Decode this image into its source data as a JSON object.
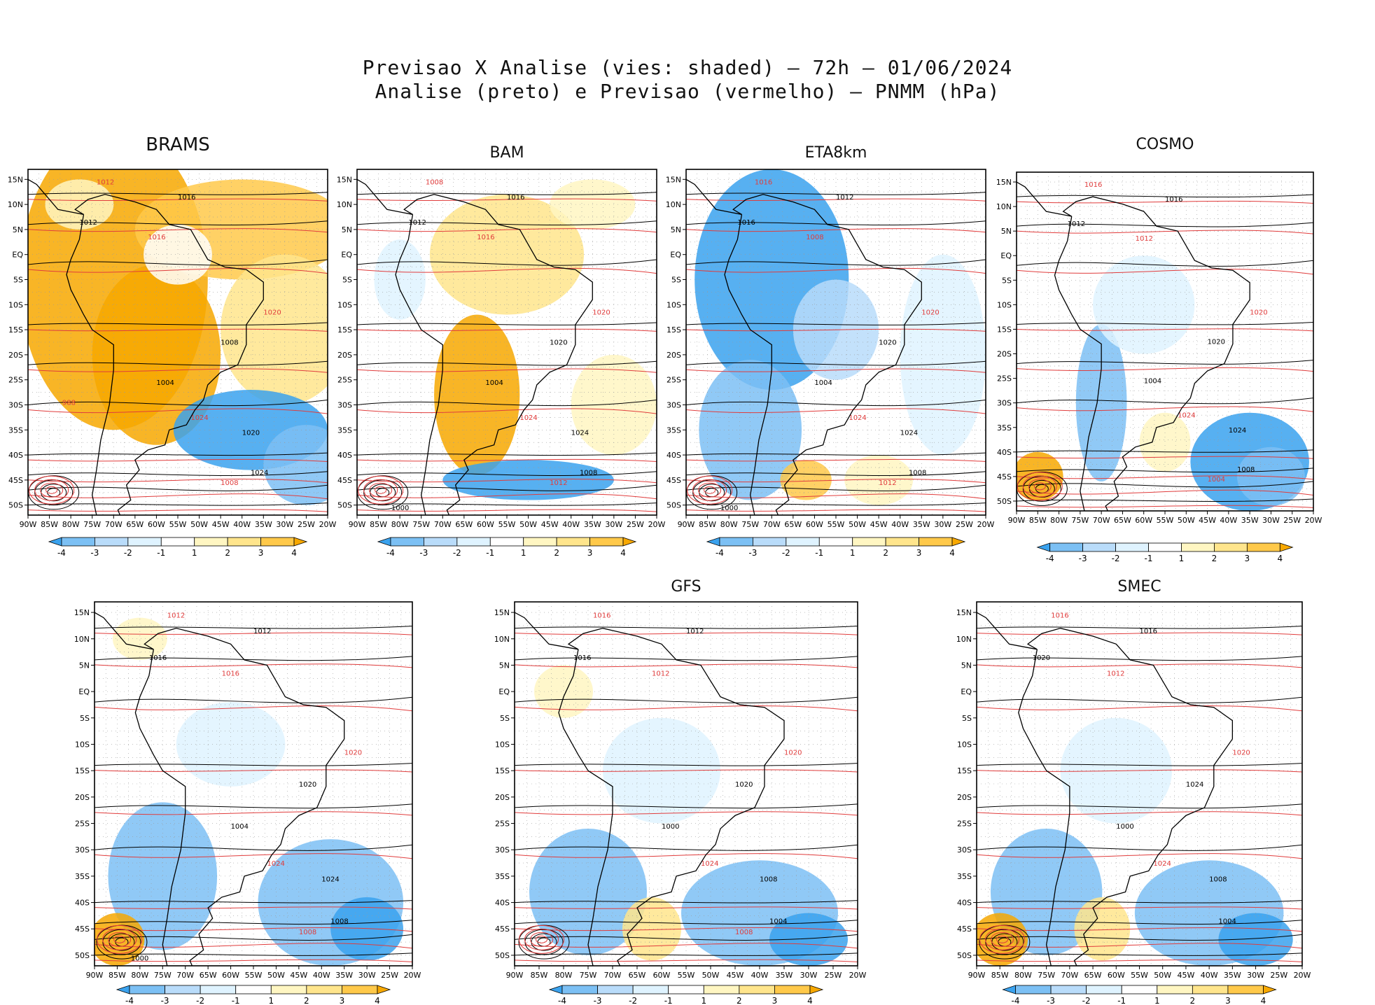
{
  "figure": {
    "title_line1": "Previsao X Analise (vies: shaded) — 72h — 01/06/2024",
    "title_line2": "Analise (preto) e Previsao (vermelho) — PNMM (hPa)"
  },
  "colors": {
    "neg4": "#3aa2ee",
    "neg3": "#7cc0f4",
    "neg2": "#b9dcfa",
    "neg1": "#dff3ff",
    "zero": "#ffffff",
    "pos1": "#fff6c2",
    "pos2": "#ffe58c",
    "pos3": "#ffc94a",
    "pos4": "#f7a800",
    "analysis_contour": "#000000",
    "forecast_contour": "#e03c3c",
    "grid": "#9a9a9a"
  },
  "axes": {
    "lat_ticks": [
      "15N",
      "10N",
      "5N",
      "EQ",
      "5S",
      "10S",
      "15S",
      "20S",
      "25S",
      "30S",
      "35S",
      "40S",
      "45S",
      "50S"
    ],
    "lon_ticks": [
      "90W",
      "85W",
      "80W",
      "75W",
      "70W",
      "65W",
      "60W",
      "55W",
      "50W",
      "45W",
      "40W",
      "35W",
      "30W",
      "25W",
      "20W"
    ]
  },
  "colorbar": {
    "labels": [
      "-4",
      "-3",
      "-2",
      "-1",
      "1",
      "2",
      "3",
      "4"
    ]
  },
  "chart_data": [
    {
      "type": "heatmap",
      "title": "BRAMS",
      "variable": "PNMM bias (hPa)",
      "xlim": [
        -90,
        -20
      ],
      "ylim": [
        -52,
        17
      ],
      "levels": [
        -4,
        -3,
        -2,
        -1,
        1,
        2,
        3,
        4
      ],
      "contour_labels_analysis": [
        "1016",
        "1012",
        "1008",
        "1020",
        "1024",
        "1004"
      ],
      "contour_labels_forecast": [
        "1012",
        "1016",
        "1020",
        "1024",
        "1008",
        "988"
      ]
    },
    {
      "type": "heatmap",
      "title": "BAM",
      "variable": "PNMM bias (hPa)",
      "xlim": [
        -90,
        -20
      ],
      "ylim": [
        -52,
        17
      ],
      "levels": [
        -4,
        -3,
        -2,
        -1,
        1,
        2,
        3,
        4
      ],
      "contour_labels_analysis": [
        "1016",
        "1012",
        "1020",
        "1024",
        "1008",
        "1004",
        "1000"
      ],
      "contour_labels_forecast": [
        "1008",
        "1016",
        "1020",
        "1024",
        "1012"
      ]
    },
    {
      "type": "heatmap",
      "title": "ETA8km",
      "variable": "PNMM bias (hPa)",
      "xlim": [
        -90,
        -20
      ],
      "ylim": [
        -52,
        17
      ],
      "levels": [
        -4,
        -3,
        -2,
        -1,
        1,
        2,
        3,
        4
      ],
      "contour_labels_analysis": [
        "1012",
        "1016",
        "1020",
        "1024",
        "1008",
        "1004",
        "1000"
      ],
      "contour_labels_forecast": [
        "1016",
        "1008",
        "1020",
        "1024",
        "1012"
      ]
    },
    {
      "type": "heatmap",
      "title": "COSMO",
      "variable": "PNMM bias (hPa)",
      "xlim": [
        -90,
        -20
      ],
      "ylim": [
        -52,
        17
      ],
      "levels": [
        -4,
        -3,
        -2,
        -1,
        1,
        2,
        3,
        4
      ],
      "contour_labels_analysis": [
        "1016",
        "1012",
        "1020",
        "1024",
        "1008",
        "1004"
      ],
      "contour_labels_forecast": [
        "1016",
        "1012",
        "1020",
        "1024",
        "1004"
      ]
    },
    {
      "type": "heatmap",
      "title": "",
      "variable": "PNMM bias (hPa)",
      "xlim": [
        -90,
        -20
      ],
      "ylim": [
        -52,
        17
      ],
      "levels": [
        -4,
        -3,
        -2,
        -1,
        1,
        2,
        3,
        4
      ],
      "contour_labels_analysis": [
        "1012",
        "1016",
        "1020",
        "1024",
        "1008",
        "1004",
        "1000"
      ],
      "contour_labels_forecast": [
        "1012",
        "1016",
        "1020",
        "1024",
        "1008"
      ]
    },
    {
      "type": "heatmap",
      "title": "GFS",
      "variable": "PNMM bias (hPa)",
      "xlim": [
        -90,
        -20
      ],
      "ylim": [
        -52,
        17
      ],
      "levels": [
        -4,
        -3,
        -2,
        -1,
        1,
        2,
        3,
        4
      ],
      "contour_labels_analysis": [
        "1012",
        "1016",
        "1020",
        "1008",
        "1004",
        "1000"
      ],
      "contour_labels_forecast": [
        "1016",
        "1012",
        "1020",
        "1024",
        "1008"
      ]
    },
    {
      "type": "heatmap",
      "title": "SMEC",
      "variable": "PNMM bias (hPa)",
      "xlim": [
        -90,
        -20
      ],
      "ylim": [
        -52,
        17
      ],
      "levels": [
        -4,
        -3,
        -2,
        -1,
        1,
        2,
        3,
        4
      ],
      "contour_labels_analysis": [
        "1016",
        "1020",
        "1024",
        "1008",
        "1004",
        "1000"
      ],
      "contour_labels_forecast": [
        "1016",
        "1012",
        "1020",
        "1024"
      ]
    }
  ]
}
